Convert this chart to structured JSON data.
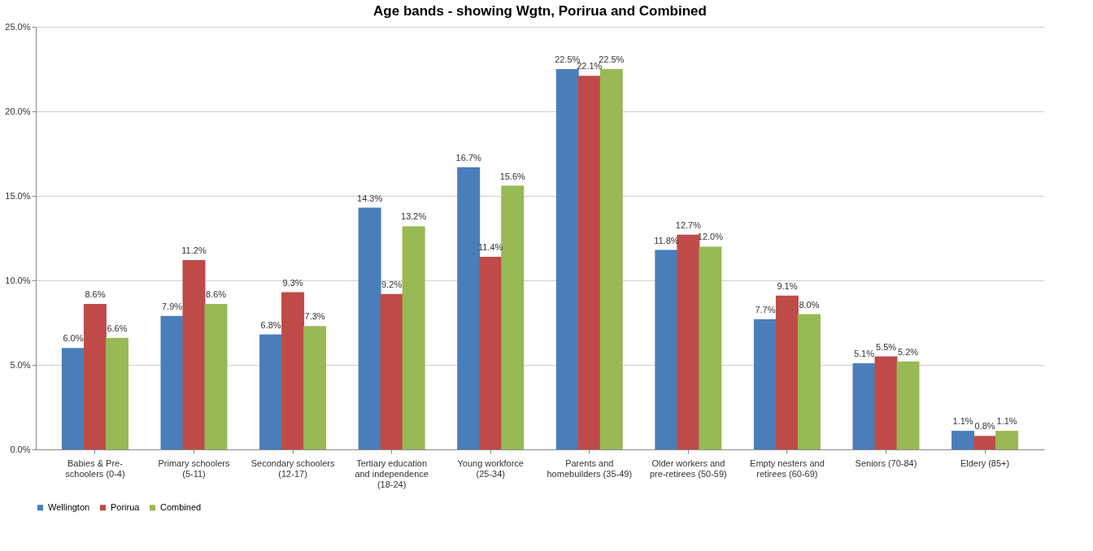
{
  "chart_data": {
    "type": "bar",
    "title": "Age bands - showing Wgtn, Porirua and Combined",
    "categories": [
      "Babies & Pre-schoolers (0-4)",
      "Primary schoolers (5-11)",
      "Secondary schoolers (12-17)",
      "Tertiary education and independence (18-24)",
      "Young workforce (25-34)",
      "Parents and homebuilders (35-49)",
      "Older workers and pre-retirees (50-59)",
      "Empty nesters and retirees (60-69)",
      "Seniors (70-84)",
      "Eldery (85+)"
    ],
    "series": [
      {
        "name": "Wellington",
        "color": "#4a7ebb",
        "values": [
          6.0,
          7.9,
          6.8,
          14.3,
          16.7,
          22.5,
          11.8,
          7.7,
          5.1,
          1.1
        ],
        "value_labels": [
          "6.0%",
          "7.9%",
          "6.8%",
          "14.3%",
          "16.7%",
          "22.5%",
          "11.8%",
          "7.7%",
          "5.1%",
          "1.1%"
        ]
      },
      {
        "name": "Porirua",
        "color": "#be4b48",
        "values": [
          8.6,
          11.2,
          9.3,
          9.2,
          11.4,
          22.1,
          12.7,
          9.1,
          5.5,
          0.8
        ],
        "value_labels": [
          "8.6%",
          "11.2%",
          "9.3%",
          "9.2%",
          "11.4%",
          "22.1%",
          "12.7%",
          "9.1%",
          "5.5%",
          "0.8%"
        ]
      },
      {
        "name": "Combined",
        "color": "#98b954",
        "values": [
          6.6,
          8.6,
          7.3,
          13.2,
          15.6,
          22.5,
          12.0,
          8.0,
          5.2,
          1.1
        ],
        "value_labels": [
          "6.6%",
          "8.6%",
          "7.3%",
          "13.2%",
          "15.6%",
          "22.5%",
          "12.0%",
          "8.0%",
          "5.2%",
          "1.1%"
        ]
      }
    ],
    "ylim": [
      0,
      25
    ],
    "yticks": [
      {
        "value": 0,
        "label": "0.0%"
      },
      {
        "value": 5,
        "label": "5.0%"
      },
      {
        "value": 10,
        "label": "10.0%"
      },
      {
        "value": 15,
        "label": "15.0%"
      },
      {
        "value": 20,
        "label": "20.0%"
      },
      {
        "value": 25,
        "label": "25.0%"
      }
    ],
    "grid": "y",
    "legend": "bottom"
  }
}
